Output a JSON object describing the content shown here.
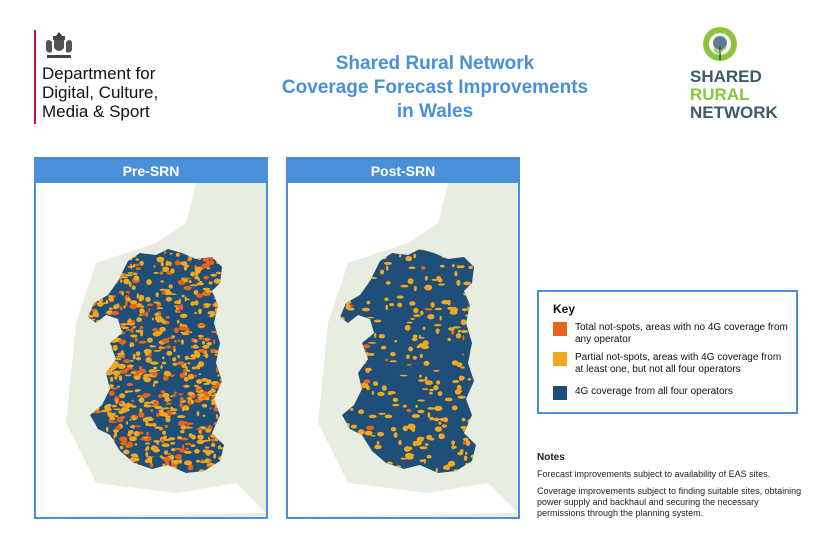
{
  "header": {
    "dept_lines": [
      "Department for",
      "Digital, Culture,",
      "Media & Sport"
    ],
    "title_lines": [
      "Shared Rural Network",
      "Coverage Forecast Improvements",
      "in Wales"
    ],
    "logo_lines": [
      "SHARED",
      "RURAL",
      "NETWORK"
    ]
  },
  "maps": [
    {
      "label": "Pre-SRN"
    },
    {
      "label": "Post-SRN"
    }
  ],
  "key": {
    "title": "Key",
    "items": [
      {
        "label": "Total not-spots, areas with no 4G coverage from any operator",
        "color": "#e8641b"
      },
      {
        "label": "Partial not-spots, areas with 4G coverage from at least one, but not all four operators",
        "color": "#f2a81d"
      },
      {
        "label": "4G coverage from all four operators",
        "color": "#1f4e79"
      }
    ]
  },
  "notes": {
    "title": "Notes",
    "lines": [
      "Forecast improvements subject to availability of EAS sites.",
      "Coverage improvements subject to finding suitable sites, obtaining power supply and backhaul and securing the necessary permissions through the planning system."
    ]
  },
  "colors": {
    "accent": "#4a90d9",
    "coverage_full": "#1f4e79",
    "partial": "#f2a81d",
    "total": "#e8641b",
    "land_bg": "#e7ede1",
    "sea": "#ffffff"
  }
}
